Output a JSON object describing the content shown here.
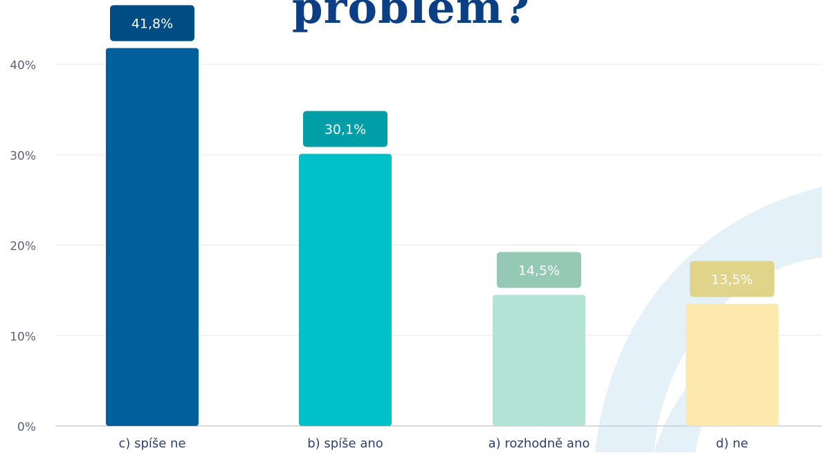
{
  "title": "problém?",
  "chart_data": {
    "type": "bar",
    "categories": [
      "c) spíše ne",
      "b) spíše ano",
      "a) rozhodně ano",
      "d) ne"
    ],
    "values": [
      41.8,
      30.1,
      14.5,
      13.5
    ],
    "value_labels": [
      "41,8%",
      "30,1%",
      "14,5%",
      "13,5%"
    ],
    "ylim": [
      0,
      40
    ],
    "yticks": [
      {
        "value": 0,
        "label": "0%"
      },
      {
        "value": 10,
        "label": "10%"
      },
      {
        "value": 20,
        "label": "20%"
      },
      {
        "value": 30,
        "label": "30%"
      },
      {
        "value": 40,
        "label": "40%"
      }
    ],
    "grid": true,
    "bar_colors": [
      "#01609b",
      "#00c1c8",
      "#b2e3d5",
      "#fde9ad"
    ],
    "label_colors": [
      "#004c84",
      "#009ea6",
      "#95c8b5",
      "#e0d38a"
    ]
  },
  "colors": {
    "title": "#0a3f86",
    "tick_text": "#5b5f7a",
    "grid": "#e6e9ee",
    "axis": "#c8ccd4",
    "swoosh": "#cfe6f4"
  }
}
